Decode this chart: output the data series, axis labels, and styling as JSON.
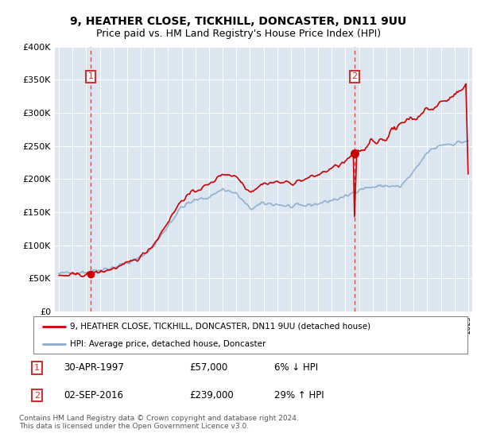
{
  "title1": "9, HEATHER CLOSE, TICKHILL, DONCASTER, DN11 9UU",
  "title2": "Price paid vs. HM Land Registry's House Price Index (HPI)",
  "sale1_year": 1997.33,
  "sale1_price": 57000,
  "sale1_label": "30-APR-1997",
  "sale1_price_str": "£57,000",
  "sale1_hpi": "6% ↓ HPI",
  "sale2_year": 2016.67,
  "sale2_price": 239000,
  "sale2_label": "02-SEP-2016",
  "sale2_price_str": "£239,000",
  "sale2_hpi": "29% ↑ HPI",
  "legend_label1": "9, HEATHER CLOSE, TICKHILL, DONCASTER, DN11 9UU (detached house)",
  "legend_label2": "HPI: Average price, detached house, Doncaster",
  "footer": "Contains HM Land Registry data © Crown copyright and database right 2024.\nThis data is licensed under the Open Government Licence v3.0.",
  "ylim": [
    0,
    400000
  ],
  "yticks": [
    0,
    50000,
    100000,
    150000,
    200000,
    250000,
    300000,
    350000,
    400000
  ],
  "ytick_labels": [
    "£0",
    "£50K",
    "£100K",
    "£150K",
    "£200K",
    "£250K",
    "£300K",
    "£350K",
    "£400K"
  ],
  "line_color_red": "#cc0000",
  "line_color_blue": "#88aacc",
  "box_color": "#cc3333",
  "bg_color": "#dce6f1",
  "grid_color": "#ffffff"
}
